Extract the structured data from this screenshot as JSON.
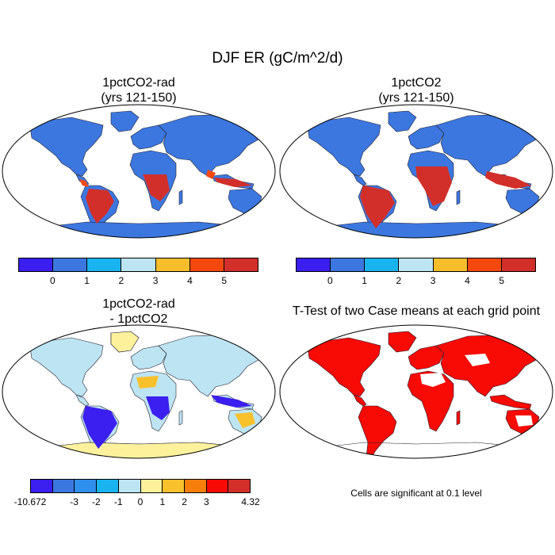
{
  "title": "DJF ER (gC/m^2/d)",
  "panels": {
    "rad": {
      "title_line1": "1pctCO2-rad",
      "title_line2": "(yrs 121-150)"
    },
    "ctl": {
      "title_line1": "1pctCO2",
      "title_line2": "(yrs 121-150)"
    },
    "diff": {
      "title_line1": "1pctCO2-rad",
      "title_line2": "- 1pctCO2"
    },
    "ttest": {
      "title": "T-Test of two Case means at each grid point",
      "note": "Cells are significant at 0.1 level"
    }
  },
  "colorbar_abs": {
    "colors": [
      "#3b1ef0",
      "#3c77e0",
      "#19b4ef",
      "#bde4f2",
      "#f7bd2a",
      "#f4480e",
      "#d22f2a"
    ],
    "ticks": [
      "0",
      "1",
      "2",
      "3",
      "4",
      "5"
    ]
  },
  "colorbar_diff": {
    "colors": [
      "#3b1ef0",
      "#3c77e0",
      "#2f8fec",
      "#19b4ef",
      "#bde4f2",
      "#fdf19c",
      "#f9c12b",
      "#f77e0a",
      "#f80a05",
      "#d22f2a"
    ],
    "ticks": [
      "-10.672",
      "-3",
      "-2",
      "-1",
      "0",
      "1",
      "2",
      "3",
      "4.32"
    ]
  },
  "map_colors": {
    "rad_ocean": "#ffffff",
    "rad_land": "#3c77e0",
    "rad_tropic": "#d22f2a",
    "rad_warm": "#f4480e",
    "ctl_land": "#3c77e0",
    "ctl_tropic": "#d22f2a",
    "diff_land": "#bde4f2",
    "diff_neg": "#3b1ef0",
    "diff_yellow": "#fdf19c",
    "ttest_sig": "#f80a05"
  }
}
